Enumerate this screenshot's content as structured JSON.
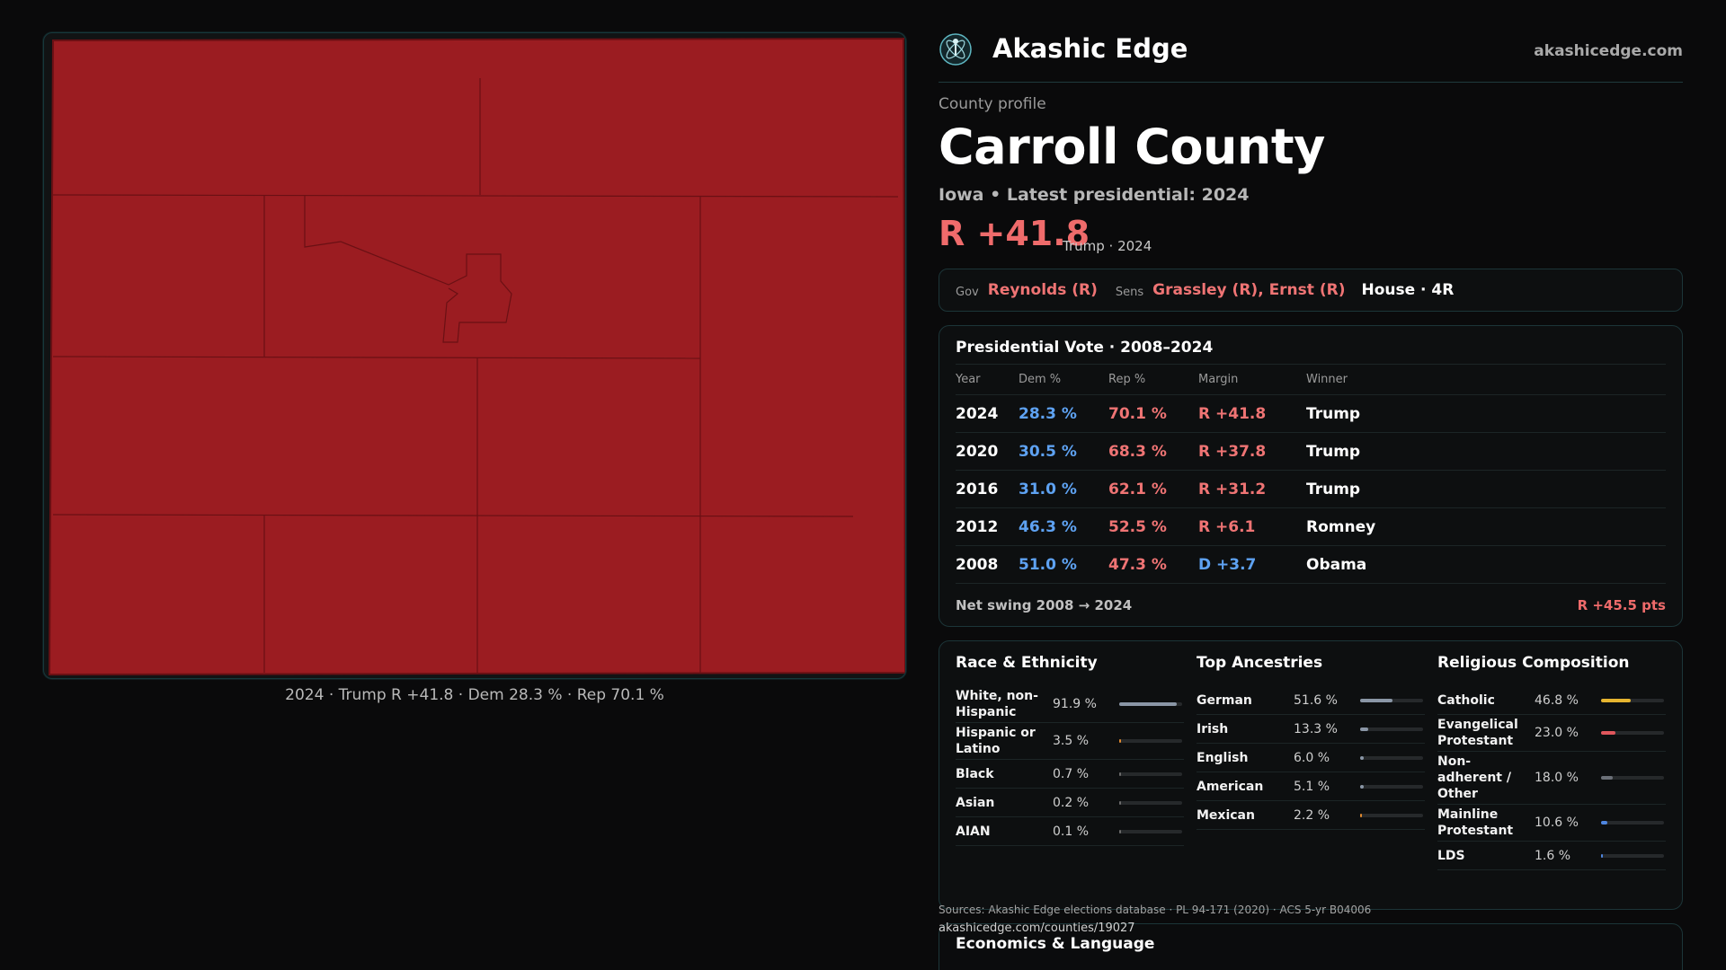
{
  "brand": {
    "name": "Akashic Edge",
    "url": "akashicedge.com",
    "logo_icon": "atom-figure-icon"
  },
  "map": {
    "caption": "2024 · Trump R +41.8 · Dem 28.3 % · Rep 70.1 %",
    "fill_color": "#9b1c21",
    "border_color": "#6a1014"
  },
  "profile": {
    "eyebrow": "County profile",
    "title": "Carroll County",
    "subtitle": "Iowa • Latest presidential: 2024",
    "margin": "R +41.8",
    "margin_note": "Trump · 2024"
  },
  "officials": {
    "gov_label": "Gov",
    "gov": "Reynolds (R)",
    "sens_label": "Sens",
    "sens": "Grassley (R), Ernst (R)",
    "house": "House · 4R"
  },
  "vote": {
    "title": "Presidential Vote · 2008–2024",
    "headers": [
      "Year",
      "Dem %",
      "Rep %",
      "Margin",
      "Winner"
    ],
    "rows": [
      {
        "year": "2024",
        "dem": "28.3 %",
        "rep": "70.1 %",
        "margin": "R +41.8",
        "party": "R",
        "winner": "Trump"
      },
      {
        "year": "2020",
        "dem": "30.5 %",
        "rep": "68.3 %",
        "margin": "R +37.8",
        "party": "R",
        "winner": "Trump"
      },
      {
        "year": "2016",
        "dem": "31.0 %",
        "rep": "62.1 %",
        "margin": "R +31.2",
        "party": "R",
        "winner": "Trump"
      },
      {
        "year": "2012",
        "dem": "46.3 %",
        "rep": "52.5 %",
        "margin": "R +6.1",
        "party": "R",
        "winner": "Romney"
      },
      {
        "year": "2008",
        "dem": "51.0 %",
        "rep": "47.3 %",
        "margin": "D +3.7",
        "party": "D",
        "winner": "Obama"
      }
    ],
    "swing_label": "Net swing 2008 → 2024",
    "swing_value": "R +45.5 pts"
  },
  "demographics": [
    {
      "title": "Race & Ethnicity",
      "rows": [
        {
          "label": "White, non-Hispanic",
          "value": "91.9 %",
          "share": 0.919,
          "color": "#8a96a6"
        },
        {
          "label": "Hispanic or Latino",
          "value": "3.5 %",
          "share": 0.035,
          "color": "#e0892f"
        },
        {
          "label": "Black",
          "value": "0.7 %",
          "share": 0.007,
          "color": "#6b6b6b"
        },
        {
          "label": "Asian",
          "value": "0.2 %",
          "share": 0.002,
          "color": "#6b6b6b"
        },
        {
          "label": "AIAN",
          "value": "0.1 %",
          "share": 0.001,
          "color": "#6b6b6b"
        }
      ]
    },
    {
      "title": "Top Ancestries",
      "rows": [
        {
          "label": "German",
          "value": "51.6 %",
          "share": 0.516,
          "color": "#8a96a6"
        },
        {
          "label": "Irish",
          "value": "13.3 %",
          "share": 0.133,
          "color": "#8a96a6"
        },
        {
          "label": "English",
          "value": "6.0 %",
          "share": 0.06,
          "color": "#8a96a6"
        },
        {
          "label": "American",
          "value": "5.1 %",
          "share": 0.051,
          "color": "#8a96a6"
        },
        {
          "label": "Mexican",
          "value": "2.2 %",
          "share": 0.022,
          "color": "#e0892f"
        }
      ]
    },
    {
      "title": "Religious Composition",
      "rows": [
        {
          "label": "Catholic",
          "value": "46.8 %",
          "share": 0.468,
          "color": "#e6b530"
        },
        {
          "label": "Evangelical Protestant",
          "value": "23.0 %",
          "share": 0.23,
          "color": "#e0565c"
        },
        {
          "label": "Non-adherent / Other",
          "value": "18.0 %",
          "share": 0.18,
          "color": "#6b7078"
        },
        {
          "label": "Mainline Protestant",
          "value": "10.6 %",
          "share": 0.106,
          "color": "#4f86e0"
        },
        {
          "label": "LDS",
          "value": "1.6 %",
          "share": 0.016,
          "color": "#4f86e0"
        }
      ]
    }
  ],
  "sources": {
    "text": "Sources: Akashic Edge elections database · PL 94-171 (2020) · ACS 5-yr B04006",
    "url": "akashicedge.com/counties/19027"
  },
  "economics": {
    "title": "Economics & Language"
  }
}
